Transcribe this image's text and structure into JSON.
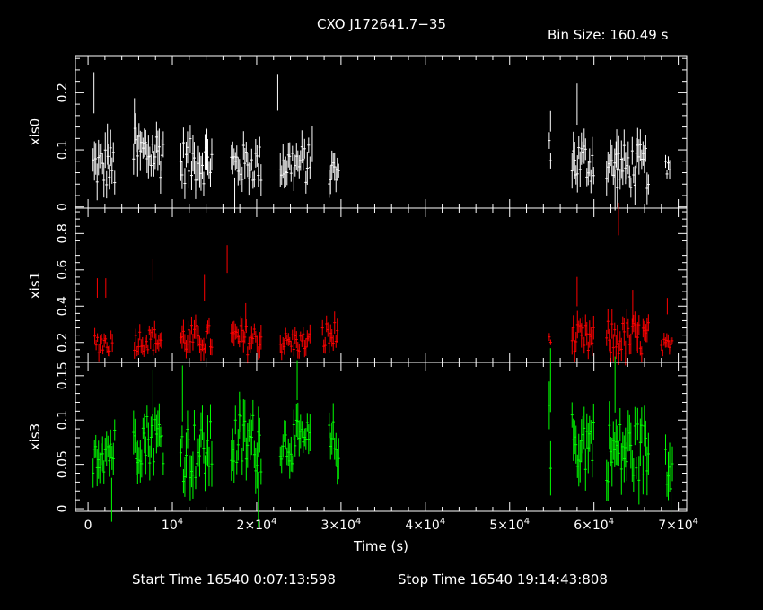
{
  "title": "CXO J172641.7−35",
  "bin_size": "Bin Size: 160.49 s",
  "footer": {
    "start": "Start Time 16540  0:07:13:598",
    "stop": "Stop Time 16540 19:14:43:808"
  },
  "colors": {
    "xis0": "#ffffff",
    "xis1": "#ff0000",
    "xis3": "#00ff00",
    "background": "#000000"
  },
  "chart_data": {
    "type": "scatter",
    "title": "CXO J172641.7−35",
    "xlabel": "Time (s)",
    "xlim": [
      -1500,
      71000
    ],
    "xticks": [
      {
        "v": 0,
        "base": "0",
        "exp": ""
      },
      {
        "v": 10000,
        "base": "10",
        "exp": "4"
      },
      {
        "v": 20000,
        "base": "2×10",
        "exp": "4"
      },
      {
        "v": 30000,
        "base": "3×10",
        "exp": "4"
      },
      {
        "v": 40000,
        "base": "4×10",
        "exp": "4"
      },
      {
        "v": 50000,
        "base": "5×10",
        "exp": "4"
      },
      {
        "v": 60000,
        "base": "6×10",
        "exp": "4"
      },
      {
        "v": 70000,
        "base": "7×10",
        "exp": "4"
      }
    ],
    "panels": [
      {
        "name": "xis0",
        "ylabel": "xis0",
        "color": "#ffffff",
        "ylim": [
          -0.002,
          0.265
        ],
        "yticks": [
          0,
          0.1,
          0.2
        ],
        "ytick_labels": [
          "0",
          "0.1",
          "0.2"
        ],
        "segments": [
          {
            "t0": 600,
            "t1": 3300,
            "lo": 0.03,
            "hi": 0.11,
            "outliers": [
              [
                700,
                0.2
              ],
              [
                2300,
                0.11
              ]
            ]
          },
          {
            "t0": 5400,
            "t1": 9000,
            "lo": 0.05,
            "hi": 0.14,
            "outliers": [
              [
                5500,
                0.15
              ]
            ]
          },
          {
            "t0": 11000,
            "t1": 14800,
            "lo": 0.04,
            "hi": 0.12,
            "outliers": [
              [
                14100,
                0.1
              ]
            ]
          },
          {
            "t0": 17000,
            "t1": 20600,
            "lo": 0.04,
            "hi": 0.11,
            "outliers": [
              [
                17400,
                0.02
              ]
            ]
          },
          {
            "t0": 22800,
            "t1": 26400,
            "lo": 0.04,
            "hi": 0.11,
            "outliers": [
              [
                22500,
                0.2
              ],
              [
                26600,
                0.11
              ]
            ]
          },
          {
            "t0": 28600,
            "t1": 29800,
            "lo": 0.03,
            "hi": 0.09,
            "outliers": []
          },
          {
            "t0": 54700,
            "t1": 54900,
            "lo": 0.08,
            "hi": 0.12,
            "outliers": [
              [
                54850,
                0.15
              ]
            ]
          },
          {
            "t0": 57400,
            "t1": 60100,
            "lo": 0.04,
            "hi": 0.12,
            "outliers": [
              [
                58000,
                0.18
              ]
            ]
          },
          {
            "t0": 61500,
            "t1": 66500,
            "lo": 0.03,
            "hi": 0.11,
            "outliers": [
              [
                62500,
                0.03
              ],
              [
                62700,
                0.1
              ]
            ]
          },
          {
            "t0": 68500,
            "t1": 69000,
            "lo": 0.04,
            "hi": 0.08,
            "outliers": []
          }
        ]
      },
      {
        "name": "xis1",
        "ylabel": "xis1",
        "color": "#ff0000",
        "ylim": [
          0.09,
          0.94
        ],
        "yticks": [
          0.2,
          0.4,
          0.6,
          0.8
        ],
        "ytick_labels": [
          "0.2",
          "0.4",
          "0.6",
          "0.8"
        ],
        "segments": [
          {
            "t0": 800,
            "t1": 3000,
            "lo": 0.14,
            "hi": 0.26,
            "outliers": [
              [
                1100,
                0.5
              ],
              [
                2100,
                0.5
              ]
            ]
          },
          {
            "t0": 5500,
            "t1": 8800,
            "lo": 0.15,
            "hi": 0.28,
            "outliers": [
              [
                7700,
                0.6
              ]
            ]
          },
          {
            "t0": 11000,
            "t1": 14800,
            "lo": 0.14,
            "hi": 0.3,
            "outliers": [
              [
                13800,
                0.5
              ]
            ]
          },
          {
            "t0": 17000,
            "t1": 20600,
            "lo": 0.13,
            "hi": 0.3,
            "outliers": [
              [
                16500,
                0.66
              ],
              [
                18700,
                0.34
              ]
            ]
          },
          {
            "t0": 22800,
            "t1": 26400,
            "lo": 0.14,
            "hi": 0.26,
            "outliers": []
          },
          {
            "t0": 27800,
            "t1": 29700,
            "lo": 0.15,
            "hi": 0.32,
            "outliers": []
          },
          {
            "t0": 54700,
            "t1": 54900,
            "lo": 0.2,
            "hi": 0.26,
            "outliers": []
          },
          {
            "t0": 57400,
            "t1": 60100,
            "lo": 0.12,
            "hi": 0.3,
            "outliers": [
              [
                58000,
                0.48
              ]
            ]
          },
          {
            "t0": 61500,
            "t1": 66600,
            "lo": 0.12,
            "hi": 0.32,
            "outliers": [
              [
                62900,
                0.88
              ],
              [
                64600,
                0.4
              ]
            ]
          },
          {
            "t0": 68000,
            "t1": 69400,
            "lo": 0.12,
            "hi": 0.22,
            "outliers": [
              [
                68700,
                0.4
              ]
            ]
          }
        ]
      },
      {
        "name": "xis3",
        "ylabel": "xis3",
        "color": "#00ff00",
        "ylim": [
          -0.003,
          0.165
        ],
        "yticks": [
          0,
          0.05,
          0.1,
          0.15
        ],
        "ytick_labels": [
          "0",
          "0.05",
          "0.1",
          "0.15"
        ],
        "segments": [
          {
            "t0": 600,
            "t1": 3300,
            "lo": 0.04,
            "hi": 0.095,
            "outliers": [
              [
                2800,
                0.01
              ]
            ]
          },
          {
            "t0": 5400,
            "t1": 9000,
            "lo": 0.05,
            "hi": 0.11,
            "outliers": [
              [
                7700,
                0.13
              ]
            ]
          },
          {
            "t0": 11000,
            "t1": 14800,
            "lo": 0.03,
            "hi": 0.1,
            "outliers": [
              [
                11200,
                0.13
              ]
            ]
          },
          {
            "t0": 17000,
            "t1": 20600,
            "lo": 0.04,
            "hi": 0.11,
            "outliers": [
              [
                20200,
                0.01
              ]
            ]
          },
          {
            "t0": 22800,
            "t1": 26400,
            "lo": 0.05,
            "hi": 0.1,
            "outliers": [
              [
                24800,
                0.145
              ]
            ]
          },
          {
            "t0": 28600,
            "t1": 29800,
            "lo": 0.045,
            "hi": 0.1,
            "outliers": []
          },
          {
            "t0": 54700,
            "t1": 54900,
            "lo": 0.04,
            "hi": 0.12,
            "outliers": [
              [
                54850,
                0.145
              ]
            ]
          },
          {
            "t0": 57400,
            "t1": 60100,
            "lo": 0.04,
            "hi": 0.11,
            "outliers": []
          },
          {
            "t0": 61500,
            "t1": 66500,
            "lo": 0.03,
            "hi": 0.1,
            "outliers": [
              [
                62500,
                0.14
              ]
            ]
          },
          {
            "t0": 68500,
            "t1": 69300,
            "lo": 0.02,
            "hi": 0.09,
            "outliers": []
          }
        ]
      }
    ]
  }
}
